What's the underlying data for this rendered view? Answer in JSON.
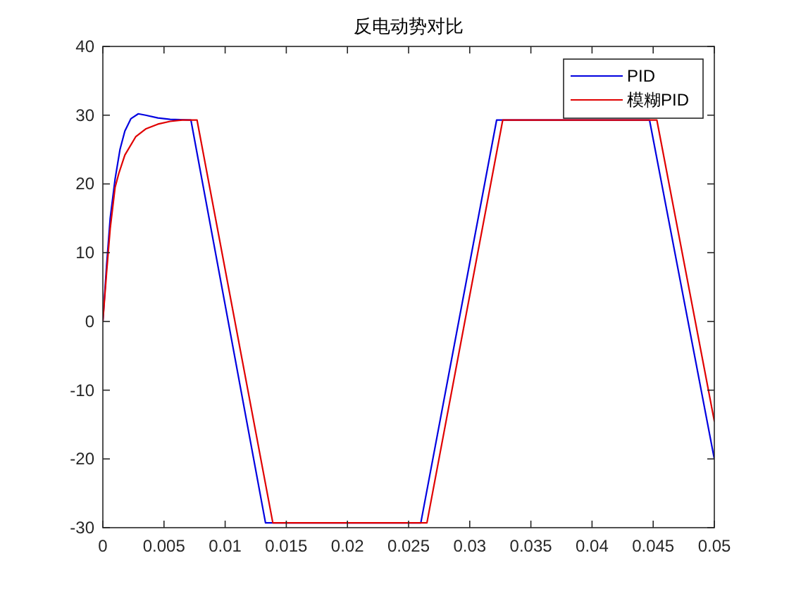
{
  "chart_data": {
    "type": "line",
    "title": "反电动势对比",
    "xlim": [
      0,
      0.05
    ],
    "xticks": [
      0,
      0.005,
      0.01,
      0.015,
      0.02,
      0.025,
      0.03,
      0.035,
      0.04,
      0.045,
      0.05
    ],
    "ylim": [
      -30,
      40
    ],
    "yticks": [
      -30,
      -20,
      -10,
      0,
      10,
      20,
      30,
      40
    ],
    "legend": "top right",
    "line_style": "solid",
    "series": [
      {
        "name": "PID",
        "color": "#0000e0",
        "x": [
          0,
          0.0003,
          0.0006,
          0.001,
          0.0014,
          0.0018,
          0.0023,
          0.0029,
          0.0035,
          0.0045,
          0.0055,
          0.0072,
          0.0133,
          0.026,
          0.0322,
          0.0447,
          0.05
        ],
        "values": [
          0,
          8,
          15,
          20.7,
          25,
          27.7,
          29.5,
          30.2,
          30,
          29.6,
          29.4,
          29.3,
          -29.3,
          -29.3,
          29.3,
          29.3,
          -20
        ]
      },
      {
        "name": "模糊PID",
        "color": "#e00000",
        "x": [
          0,
          0.0003,
          0.0006,
          0.001,
          0.0013,
          0.0018,
          0.0027,
          0.0035,
          0.0045,
          0.0055,
          0.0065,
          0.0077,
          0.0139,
          0.0265,
          0.0327,
          0.0453,
          0.05
        ],
        "values": [
          0,
          7,
          13.5,
          19.5,
          21.5,
          24.2,
          26.9,
          28,
          28.7,
          29.1,
          29.3,
          29.3,
          -29.3,
          -29.3,
          29.3,
          29.3,
          -14.5
        ]
      }
    ]
  }
}
